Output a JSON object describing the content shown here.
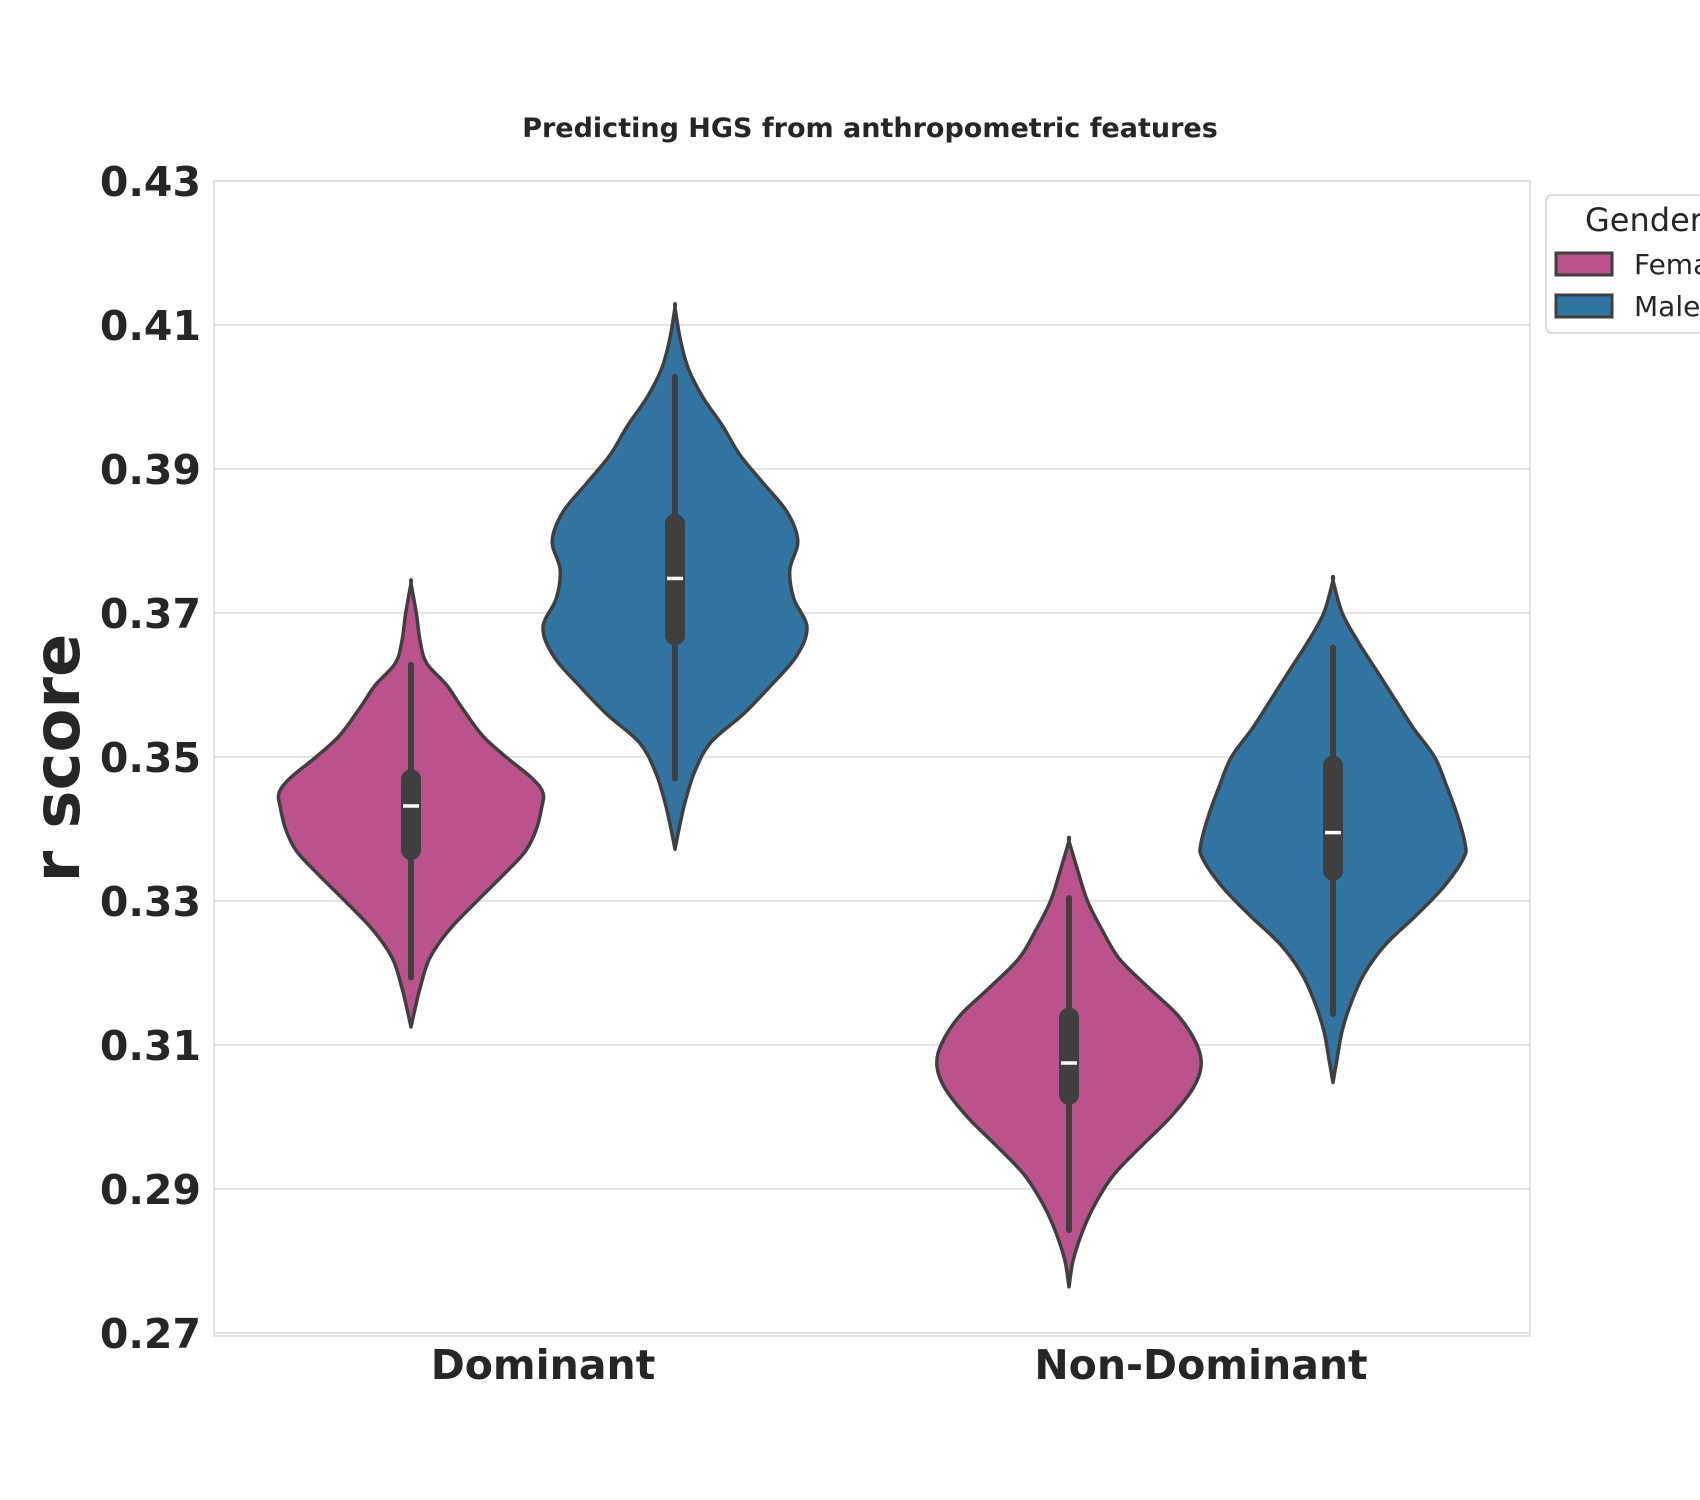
{
  "chart_data": {
    "type": "violin",
    "title": "Predicting HGS from anthropometric features",
    "xlabel": "",
    "ylabel": "r score",
    "ylim": [
      0.27,
      0.43
    ],
    "yticks": [
      "0.27",
      "0.29",
      "0.31",
      "0.33",
      "0.35",
      "0.37",
      "0.39",
      "0.41",
      "0.43"
    ],
    "categories": [
      "Dominant",
      "Non-Dominant"
    ],
    "grid": true,
    "legend": {
      "title": "Gender",
      "placement": "top-right, outside the plot",
      "entries": [
        "Female",
        "Male"
      ]
    },
    "series": [
      {
        "name": "Female",
        "color": "#bb528b",
        "violins": [
          {
            "category": "Dominant",
            "range": [
              0.3125,
              0.3741
            ],
            "whisker": [
              0.3194,
              0.3628
            ],
            "q1": 0.3357,
            "median": 0.3432,
            "q3": 0.3483,
            "profile": [
              [
                0.3125,
                0.0
              ],
              [
                0.315,
                0.03
              ],
              [
                0.318,
                0.07
              ],
              [
                0.322,
                0.14
              ],
              [
                0.326,
                0.29
              ],
              [
                0.33,
                0.5
              ],
              [
                0.334,
                0.72
              ],
              [
                0.337,
                0.87
              ],
              [
                0.34,
                0.95
              ],
              [
                0.343,
                0.99
              ],
              [
                0.345,
                1.0
              ],
              [
                0.347,
                0.92
              ],
              [
                0.35,
                0.72
              ],
              [
                0.353,
                0.54
              ],
              [
                0.357,
                0.38
              ],
              [
                0.36,
                0.27
              ],
              [
                0.363,
                0.12
              ],
              [
                0.366,
                0.07
              ],
              [
                0.37,
                0.04
              ],
              [
                0.3741,
                0.0
              ]
            ]
          },
          {
            "category": "Non-Dominant",
            "range": [
              0.2764,
              0.3383
            ],
            "whisker": [
              0.2843,
              0.3304
            ],
            "q1": 0.3017,
            "median": 0.3075,
            "q3": 0.3152,
            "profile": [
              [
                0.2764,
                0.0
              ],
              [
                0.28,
                0.03
              ],
              [
                0.284,
                0.1
              ],
              [
                0.288,
                0.2
              ],
              [
                0.292,
                0.34
              ],
              [
                0.296,
                0.55
              ],
              [
                0.3,
                0.77
              ],
              [
                0.304,
                0.94
              ],
              [
                0.307,
                1.0
              ],
              [
                0.31,
                0.97
              ],
              [
                0.314,
                0.83
              ],
              [
                0.318,
                0.6
              ],
              [
                0.322,
                0.38
              ],
              [
                0.326,
                0.25
              ],
              [
                0.33,
                0.14
              ],
              [
                0.334,
                0.07
              ],
              [
                0.3383,
                0.0
              ]
            ]
          }
        ]
      },
      {
        "name": "Male",
        "color": "#3274a1",
        "violins": [
          {
            "category": "Dominant",
            "range": [
              0.3372,
              0.4124
            ],
            "whisker": [
              0.347,
              0.4028
            ],
            "q1": 0.3655,
            "median": 0.3748,
            "q3": 0.3838,
            "profile": [
              [
                0.3372,
                0.0
              ],
              [
                0.34,
                0.03
              ],
              [
                0.344,
                0.08
              ],
              [
                0.348,
                0.15
              ],
              [
                0.352,
                0.27
              ],
              [
                0.356,
                0.52
              ],
              [
                0.36,
                0.73
              ],
              [
                0.364,
                0.92
              ],
              [
                0.368,
                1.0
              ],
              [
                0.372,
                0.9
              ],
              [
                0.376,
                0.87
              ],
              [
                0.38,
                0.93
              ],
              [
                0.384,
                0.85
              ],
              [
                0.388,
                0.67
              ],
              [
                0.392,
                0.49
              ],
              [
                0.396,
                0.36
              ],
              [
                0.4,
                0.21
              ],
              [
                0.404,
                0.1
              ],
              [
                0.408,
                0.04
              ],
              [
                0.4124,
                0.0
              ]
            ]
          },
          {
            "category": "Non-Dominant",
            "range": [
              0.3048,
              0.3745
            ],
            "whisker": [
              0.3143,
              0.3652
            ],
            "q1": 0.3328,
            "median": 0.3395,
            "q3": 0.3502,
            "profile": [
              [
                0.3048,
                0.0
              ],
              [
                0.308,
                0.03
              ],
              [
                0.312,
                0.07
              ],
              [
                0.316,
                0.14
              ],
              [
                0.32,
                0.24
              ],
              [
                0.324,
                0.4
              ],
              [
                0.328,
                0.63
              ],
              [
                0.332,
                0.84
              ],
              [
                0.336,
                0.99
              ],
              [
                0.338,
                1.0
              ],
              [
                0.342,
                0.94
              ],
              [
                0.346,
                0.86
              ],
              [
                0.35,
                0.77
              ],
              [
                0.354,
                0.61
              ],
              [
                0.358,
                0.47
              ],
              [
                0.362,
                0.33
              ],
              [
                0.366,
                0.19
              ],
              [
                0.37,
                0.07
              ],
              [
                0.3745,
                0.0
              ]
            ]
          }
        ]
      }
    ]
  }
}
